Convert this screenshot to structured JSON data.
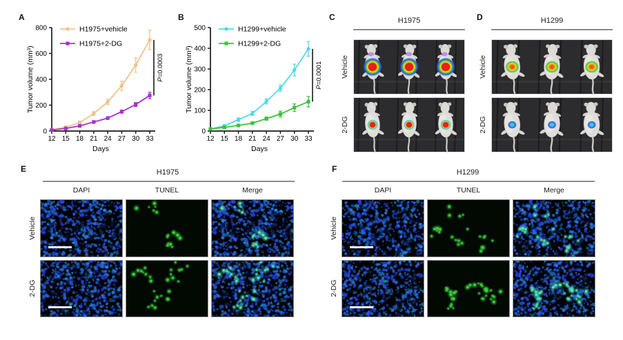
{
  "colors": {
    "h1975_vehicle": "#f2c18c",
    "h1975_2dg": "#a832d4",
    "h1299_vehicle": "#55d8e8",
    "h1299_2dg": "#3ec23e",
    "axis": "#1a1a1a",
    "header_line": "#8d8d8d",
    "dapi_blue": "#2234d8",
    "tunel_green": "#3ed43e"
  },
  "chart_data": [
    {
      "type": "line",
      "panel_label": "A",
      "x": [
        12,
        15,
        18,
        21,
        24,
        27,
        30,
        33
      ],
      "xlabel": "Days",
      "ylabel": "Tumor volume (mm³)",
      "ylim": [
        0,
        800
      ],
      "yticks": [
        0,
        200,
        400,
        600,
        800
      ],
      "grid": false,
      "legend_position": "top-left-inside",
      "p_label": "P=0.0003",
      "series": [
        {
          "name": "H1975+vehicle",
          "color": "#f2c18c",
          "marker": "circle",
          "values": [
            10,
            30,
            65,
            135,
            225,
            350,
            510,
            705
          ],
          "errors": [
            4,
            8,
            12,
            15,
            20,
            35,
            55,
            75
          ]
        },
        {
          "name": "H1975+2-DG",
          "color": "#a832d4",
          "marker": "square",
          "values": [
            8,
            20,
            40,
            70,
            100,
            150,
            205,
            275
          ],
          "errors": [
            3,
            5,
            6,
            8,
            10,
            12,
            15,
            25
          ]
        }
      ]
    },
    {
      "type": "line",
      "panel_label": "B",
      "x": [
        12,
        15,
        18,
        21,
        24,
        27,
        30,
        33
      ],
      "xlabel": "Days",
      "ylabel": "Tumor volume (mm³)",
      "ylim": [
        0,
        500
      ],
      "yticks": [
        0,
        100,
        200,
        300,
        400,
        500
      ],
      "grid": false,
      "legend_position": "top-left-inside",
      "p_label": "P=0.0001",
      "series": [
        {
          "name": "H1299+vehicle",
          "color": "#55d8e8",
          "marker": "circle",
          "values": [
            10,
            25,
            55,
            85,
            143,
            207,
            295,
            397
          ],
          "errors": [
            3,
            5,
            8,
            10,
            12,
            15,
            28,
            35
          ]
        },
        {
          "name": "H1299+2-DG",
          "color": "#3ec23e",
          "marker": "square",
          "values": [
            10,
            18,
            27,
            38,
            60,
            82,
            113,
            142
          ],
          "errors": [
            2,
            4,
            5,
            6,
            8,
            14,
            18,
            25
          ]
        }
      ]
    }
  ],
  "panels": {
    "C": {
      "label": "C",
      "title": "H1975",
      "row_labels": [
        "Vehicle",
        "2-DG"
      ]
    },
    "D": {
      "label": "D",
      "title": "H1299",
      "row_labels": [
        "Vehicle",
        "2-DG"
      ]
    },
    "E": {
      "label": "E",
      "title": "H1975",
      "col_labels": [
        "DAPI",
        "TUNEL",
        "Merge"
      ],
      "row_labels": [
        "Vehicle",
        "2-DG"
      ],
      "tunel_dots": [
        15,
        27
      ]
    },
    "F": {
      "label": "F",
      "title": "H1299",
      "col_labels": [
        "DAPI",
        "TUNEL",
        "Merge"
      ],
      "row_labels": [
        "Vehicle",
        "2-DG"
      ],
      "tunel_dots": [
        23,
        33
      ]
    }
  }
}
